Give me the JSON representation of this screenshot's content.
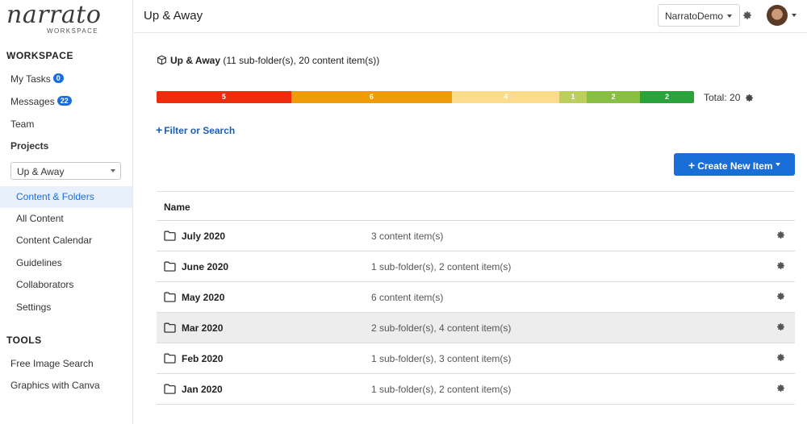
{
  "logo": {
    "name": "narrato",
    "sub": "WORKSPACE"
  },
  "sidebar": {
    "workspace_title": "WORKSPACE",
    "my_tasks": {
      "label": "My Tasks",
      "badge": "0"
    },
    "messages": {
      "label": "Messages",
      "badge": "22"
    },
    "team": "Team",
    "projects": "Projects",
    "project_select": "Up & Away",
    "items": [
      {
        "label": "Content & Folders",
        "active": true
      },
      {
        "label": "All Content"
      },
      {
        "label": "Content Calendar"
      },
      {
        "label": "Guidelines"
      },
      {
        "label": "Collaborators"
      },
      {
        "label": "Settings"
      }
    ],
    "tools_title": "TOOLS",
    "tools": [
      "Free Image Search",
      "Graphics with Canva"
    ]
  },
  "header": {
    "title": "Up & Away",
    "account": "NarratoDemo",
    "gear_icon": "gear-icon"
  },
  "main": {
    "folder_name": "Up & Away",
    "folder_summary": "(11 sub-folder(s), 20 content item(s))",
    "status_segments": [
      {
        "value": "5",
        "count": 5,
        "color": "#ec2c0b"
      },
      {
        "value": "6",
        "count": 6,
        "color": "#ef9c09"
      },
      {
        "value": "4",
        "count": 4,
        "color": "#fbdc8c"
      },
      {
        "value": "1",
        "count": 1,
        "color": "#bccf5a"
      },
      {
        "value": "2",
        "count": 2,
        "color": "#86bf42"
      },
      {
        "value": "2",
        "count": 2,
        "color": "#29a33a"
      }
    ],
    "total": "Total: 20",
    "filter_link": "Filter or Search",
    "create_button": "Create New Item",
    "table": {
      "header_name": "Name",
      "rows": [
        {
          "name": "July 2020",
          "count": "3 content item(s)"
        },
        {
          "name": "June 2020",
          "count": "1 sub-folder(s), 2 content item(s)"
        },
        {
          "name": "May 2020",
          "count": "6 content item(s)"
        },
        {
          "name": "Mar 2020",
          "count": "2 sub-folder(s), 4 content item(s)"
        },
        {
          "name": "Feb 2020",
          "count": "1 sub-folder(s), 3 content item(s)"
        },
        {
          "name": "Jan 2020",
          "count": "1 sub-folder(s), 2 content item(s)"
        }
      ]
    }
  },
  "colors": {
    "accent": "#1a6ed8",
    "link": "#1a5fb4",
    "active_bg": "#e8f0fc"
  }
}
